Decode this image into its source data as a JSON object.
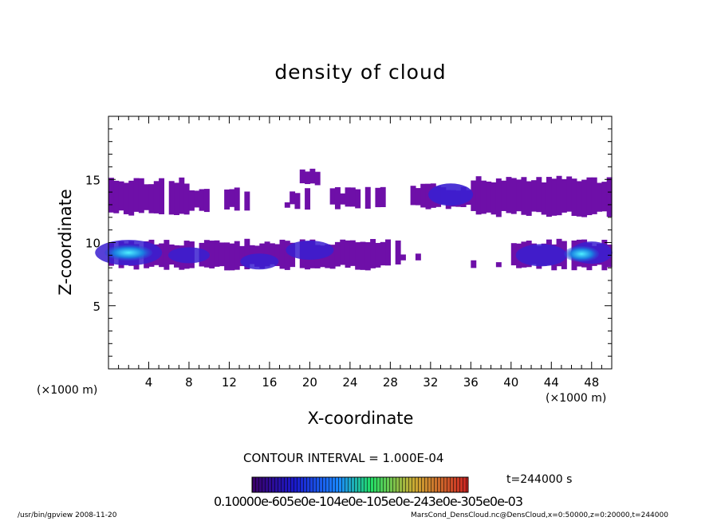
{
  "chart_data": {
    "type": "heatmap",
    "title": "density of cloud",
    "xlabel": "X-coordinate",
    "ylabel": "Z-coordinate",
    "x_unit_left": "(×1000 m)",
    "x_unit_right": "(×1000 m)",
    "xlim": [
      0,
      50
    ],
    "ylim": [
      0,
      20
    ],
    "x_ticks": [
      4,
      8,
      12,
      16,
      20,
      24,
      28,
      32,
      36,
      40,
      44,
      48
    ],
    "y_ticks": [
      5,
      10,
      15
    ],
    "contour_interval": "CONTOUR INTERVAL = 1.000E-04",
    "time_label": "t=244000 s",
    "colorbar_labels": "0.10000e-605e0e-104e0e-105e0e-243e0e-305e0e-03",
    "cloud_layers": [
      {
        "name": "upper",
        "z_min": 12,
        "z_max": 15.3,
        "x_extent": [
          0,
          50
        ]
      },
      {
        "name": "lower",
        "z_min": 7.8,
        "z_max": 10.4,
        "x_extent": [
          0,
          50
        ]
      }
    ]
  },
  "footer": {
    "left": "/usr/bin/gpview   2008-11-20",
    "right": "MarsCond_DensCloud.nc@DensCloud,x=0:50000,z=0:20000,t=244000"
  },
  "colors": {
    "low": "#6e0fa8",
    "mid": "#3a1fd0",
    "dense": "#1a7fe0",
    "peak": "#38e6ff"
  }
}
